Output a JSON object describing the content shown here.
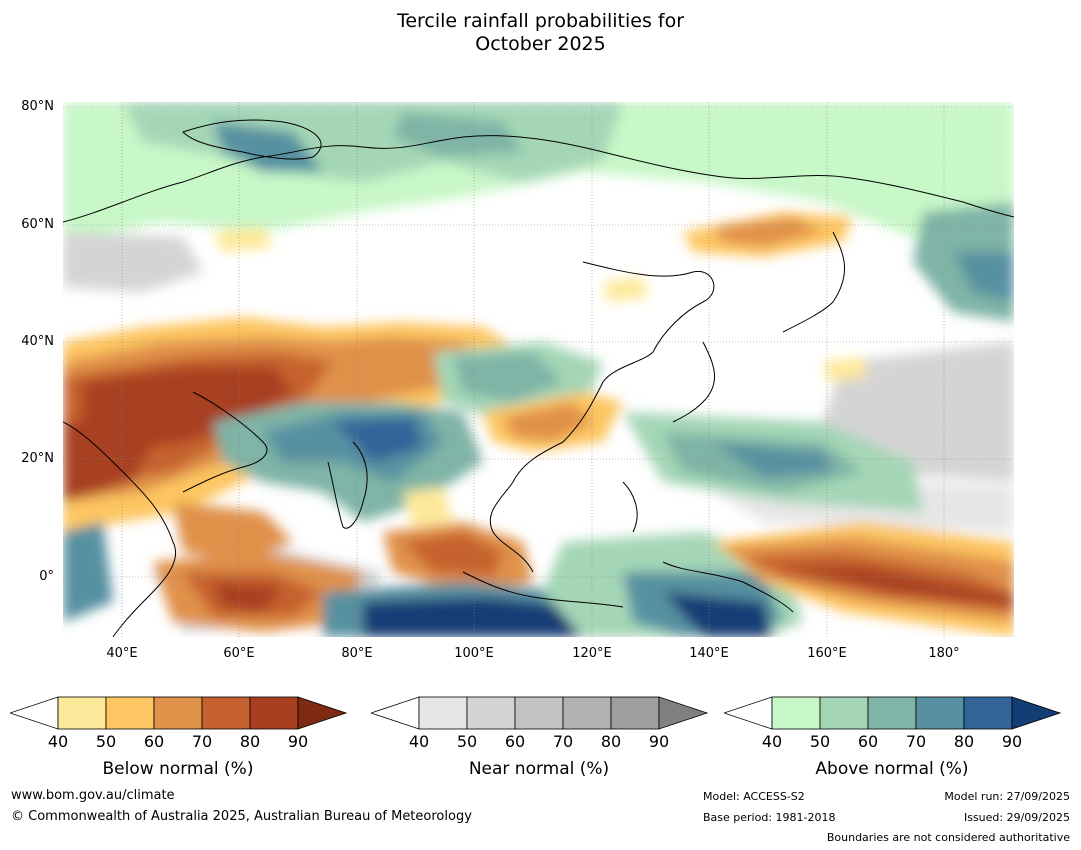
{
  "title_line1": "Tercile rainfall probabilities for",
  "title_line2": "October 2025",
  "map": {
    "lat_labels": [
      "80°N",
      "60°N",
      "40°N",
      "20°N",
      "0°"
    ],
    "lon_labels": [
      "40°E",
      "60°E",
      "80°E",
      "100°E",
      "120°E",
      "140°E",
      "160°E",
      "180°"
    ]
  },
  "colorbars": [
    {
      "label": "Below normal (%)",
      "ticks": [
        "40",
        "50",
        "60",
        "70",
        "80",
        "90"
      ],
      "colors": [
        "#ffffff",
        "#fee99a",
        "#fdc662",
        "#e0914a",
        "#c6622f",
        "#a83f20",
        "#7f2a12"
      ]
    },
    {
      "label": "Near normal (%)",
      "ticks": [
        "40",
        "50",
        "60",
        "70",
        "80",
        "90"
      ],
      "colors": [
        "#ffffff",
        "#e6e6e6",
        "#d4d4d4",
        "#c3c3c3",
        "#b2b2b2",
        "#9f9f9f",
        "#808080"
      ]
    },
    {
      "label": "Above normal (%)",
      "ticks": [
        "40",
        "50",
        "60",
        "70",
        "80",
        "90"
      ],
      "colors": [
        "#ffffff",
        "#c8f7c8",
        "#a4d6b6",
        "#7fb4a6",
        "#5791a1",
        "#33659a",
        "#123d75"
      ]
    }
  ],
  "footer": {
    "url": "www.bom.gov.au/climate",
    "copyright": "© Commonwealth of Australia 2025, Australian Bureau of Meteorology",
    "model": "Model: ACCESS-S2",
    "base_period": "Base period: 1981-2018",
    "model_run": "Model run: 27/09/2025",
    "issued": "Issued: 29/09/2025",
    "disclaimer": "Boundaries are not considered authoritative"
  }
}
